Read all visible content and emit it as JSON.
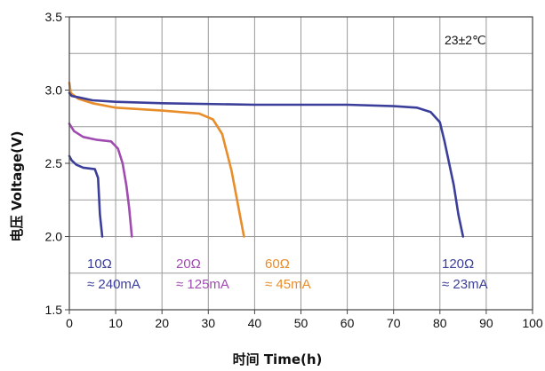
{
  "chart_data": {
    "type": "line",
    "xlabel": "时间 Time(h)",
    "ylabel": "电压 Voltage(V)",
    "xlim": [
      0,
      100
    ],
    "ylim": [
      1.5,
      3.5
    ],
    "x_ticks": [
      "0",
      "10",
      "20",
      "30",
      "40",
      "50",
      "60",
      "70",
      "80",
      "90",
      "100"
    ],
    "y_ticks": [
      "1.5",
      "2.0",
      "2.5",
      "3.0",
      "3.5"
    ],
    "grid": true,
    "annotation": "23±2℃",
    "series": [
      {
        "name": "10Ω",
        "current": "≈ 240mA",
        "color": "#3b3f9a",
        "x": [
          0,
          0.5,
          1.5,
          3,
          5.5,
          6.2,
          6.6,
          7.1
        ],
        "y": [
          2.55,
          2.52,
          2.49,
          2.47,
          2.46,
          2.4,
          2.15,
          2.0
        ]
      },
      {
        "name": "20Ω",
        "current": "≈ 125mA",
        "color": "#a04bb0",
        "x": [
          0,
          1,
          3,
          6,
          9,
          10.5,
          11.5,
          12.3,
          12.9,
          13.5
        ],
        "y": [
          2.77,
          2.72,
          2.68,
          2.66,
          2.65,
          2.6,
          2.5,
          2.35,
          2.2,
          2.0
        ]
      },
      {
        "name": "60Ω",
        "current": "≈ 45mA",
        "color": "#e88d2a",
        "x": [
          0,
          0.3,
          2,
          5,
          10,
          20,
          28,
          31,
          33,
          35,
          36.5,
          37.7
        ],
        "y": [
          3.05,
          2.98,
          2.94,
          2.91,
          2.88,
          2.86,
          2.84,
          2.8,
          2.7,
          2.45,
          2.2,
          2.0
        ]
      },
      {
        "name": "120Ω",
        "current": "≈ 23mA",
        "color": "#3b3f9a",
        "x": [
          0,
          0.5,
          2,
          5,
          10,
          20,
          40,
          60,
          70,
          75,
          78,
          80,
          81,
          82,
          83,
          84,
          85
        ],
        "y": [
          2.98,
          2.96,
          2.95,
          2.93,
          2.92,
          2.91,
          2.9,
          2.9,
          2.89,
          2.88,
          2.85,
          2.78,
          2.65,
          2.5,
          2.35,
          2.15,
          2.0
        ]
      }
    ]
  }
}
